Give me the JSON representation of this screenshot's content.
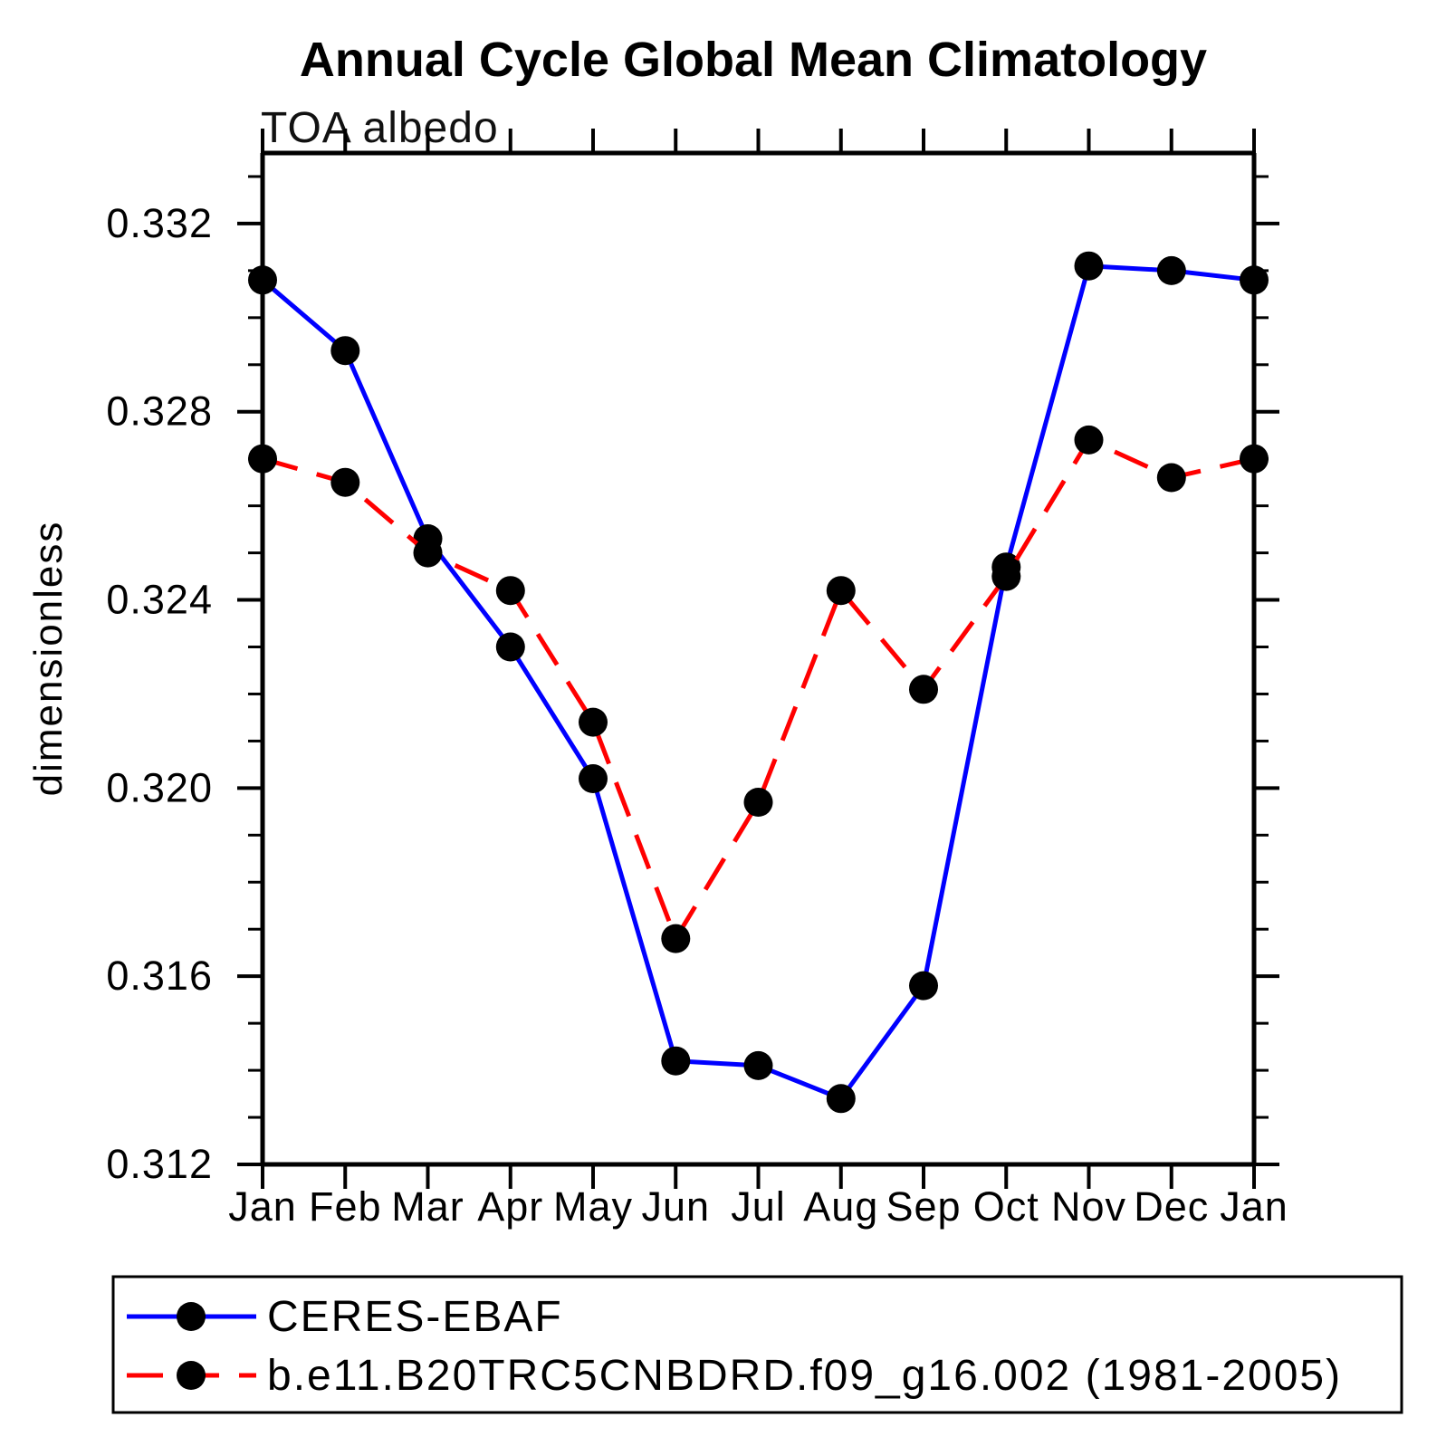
{
  "chart_data": {
    "type": "line",
    "title": "Annual Cycle Global Mean Climatology",
    "subtitle": "TOA albedo",
    "ylabel": "dimensionless",
    "x_tick_labels": [
      "Jan",
      "Feb",
      "Mar",
      "Apr",
      "May",
      "Jun",
      "Jul",
      "Aug",
      "Sep",
      "Oct",
      "Nov",
      "Dec",
      "Jan"
    ],
    "y_major_ticks": [
      0.312,
      0.316,
      0.32,
      0.324,
      0.328,
      0.332
    ],
    "y_minor_step": 0.001,
    "ylim": [
      0.312,
      0.3335
    ],
    "grid": false,
    "legend_position": "bottom-left-box",
    "axis_color": "#000000",
    "background_color": "#ffffff",
    "marker_color": "#000000",
    "series": [
      {
        "name": "CERES-EBAF",
        "color": "#0000ff",
        "line_style": "solid",
        "marker": "filled-circle",
        "values": [
          0.3308,
          0.3293,
          0.3253,
          0.323,
          0.3202,
          0.3142,
          0.3141,
          0.3134,
          0.3158,
          0.3247,
          0.3311,
          0.331,
          0.3308
        ]
      },
      {
        "name": "b.e11.B20TRC5CNBDRD.f09_g16.002 (1981-2005)",
        "color": "#ff0000",
        "line_style": "dashed",
        "marker": "filled-circle",
        "values": [
          0.327,
          0.3265,
          0.325,
          0.3242,
          0.3214,
          0.3168,
          0.3197,
          0.3242,
          0.3221,
          0.3245,
          0.3274,
          0.3266,
          0.327
        ]
      }
    ]
  }
}
